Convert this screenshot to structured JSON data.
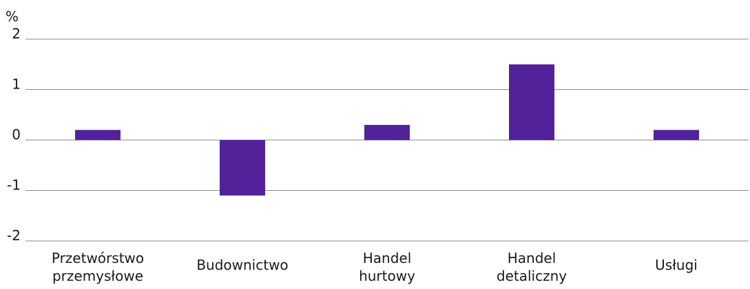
{
  "chart_data": {
    "type": "bar",
    "ylabel": "%",
    "categories": [
      [
        "Przetwórstwo",
        "przemysłowe"
      ],
      [
        "Budownictwo"
      ],
      [
        "Handel",
        "hurtowy"
      ],
      [
        "Handel",
        "detaliczny"
      ],
      [
        "Usługi"
      ]
    ],
    "values": [
      0.2,
      -1.1,
      0.3,
      1.5,
      0.2
    ],
    "ylim": [
      -2,
      2
    ],
    "yticks": [
      2,
      1,
      0,
      -1,
      -2
    ],
    "ytick_labels": [
      "2",
      "1",
      "0",
      "-1",
      "-2"
    ],
    "grid": true,
    "colors": {
      "bar": "#52229a",
      "grid": "#8a8a8a"
    }
  }
}
